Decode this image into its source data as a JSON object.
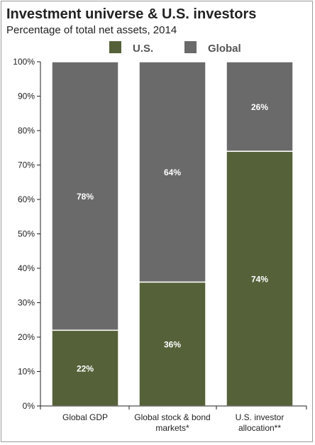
{
  "title": "Investment universe & U.S. investors",
  "subtitle": "Percentage of total net assets, 2014",
  "colors": {
    "us": "#556139",
    "global": "#6a6a6a",
    "axis": "#222222"
  },
  "chart_data": {
    "type": "bar",
    "stacked": true,
    "title": "Investment universe & U.S. investors",
    "subtitle": "Percentage of total net assets, 2014",
    "categories": [
      [
        "Global GDP"
      ],
      [
        "Global stock & bond",
        "markets*"
      ],
      [
        "U.S. investor",
        "allocation**"
      ]
    ],
    "series": [
      {
        "name": "U.S.",
        "values": [
          22,
          36,
          74
        ],
        "labels": [
          "22%",
          "36%",
          "74%"
        ]
      },
      {
        "name": "Global",
        "values": [
          78,
          64,
          26
        ],
        "labels": [
          "78%",
          "64%",
          "26%"
        ]
      }
    ],
    "ylim": [
      0,
      100
    ],
    "yticks": [
      "0%",
      "10%",
      "20%",
      "30%",
      "40%",
      "50%",
      "60%",
      "70%",
      "80%",
      "90%",
      "100%"
    ],
    "xlabel": "",
    "ylabel": "",
    "legend_position": "top",
    "grid": false
  }
}
